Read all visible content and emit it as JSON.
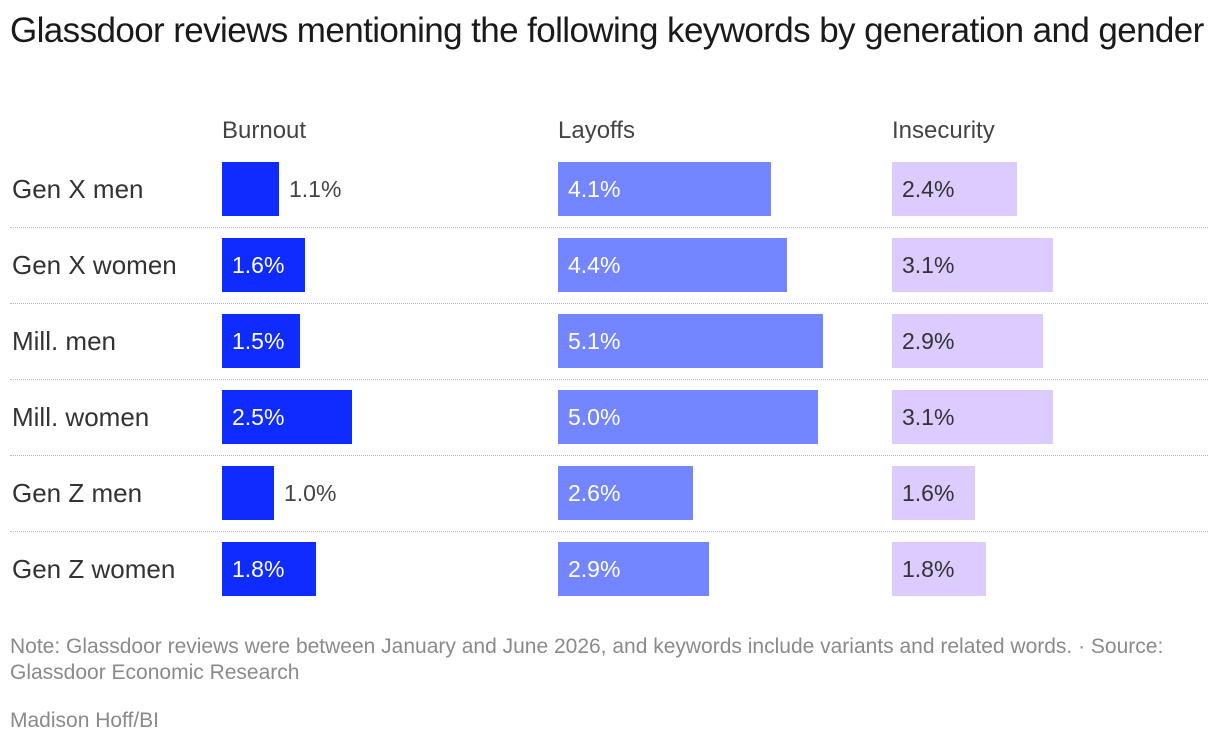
{
  "chart_data": {
    "type": "bar",
    "title": "Glassdoor reviews mentioning the following keywords by generation and gender",
    "categories": [
      "Gen X men",
      "Gen X women",
      "Mill. men",
      "Mill. women",
      "Gen Z men",
      "Gen Z women"
    ],
    "series": [
      {
        "name": "Burnout",
        "color": "#0e2cff",
        "label_color": "#ffffff",
        "values": [
          1.1,
          1.6,
          1.5,
          2.5,
          1.0,
          1.8
        ],
        "labels": [
          "1.1%",
          "1.6%",
          "1.5%",
          "2.5%",
          "1.0%",
          "1.8%"
        ]
      },
      {
        "name": "Layoffs",
        "color": "#7386ff",
        "label_color": "#ffffff",
        "values": [
          4.1,
          4.4,
          5.1,
          5.0,
          2.6,
          2.9
        ],
        "labels": [
          "4.1%",
          "4.4%",
          "5.1%",
          "5.0%",
          "2.6%",
          "2.9%"
        ]
      },
      {
        "name": "Insecurity",
        "color": "#dccbff",
        "label_color": "#333333",
        "values": [
          2.4,
          3.1,
          2.9,
          3.1,
          1.6,
          1.8
        ],
        "labels": [
          "2.4%",
          "3.1%",
          "2.9%",
          "3.1%",
          "1.6%",
          "1.8%"
        ]
      }
    ],
    "ylabel": "",
    "xlabel": "",
    "grid": false,
    "legend": "none"
  },
  "note": "Note: Glassdoor reviews were between January and June 2026, and keywords include variants and related words. · Source: Glassdoor Economic Research",
  "credit": "Madison Hoff/BI"
}
